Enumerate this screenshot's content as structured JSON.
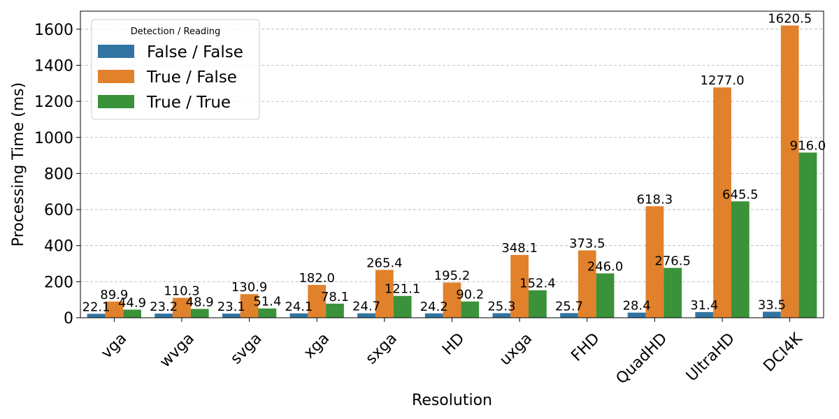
{
  "chart_data": {
    "type": "bar",
    "title": "",
    "xlabel": "Resolution",
    "ylabel": "Processing Time (ms)",
    "ylim": [
      0,
      1700
    ],
    "yticks": [
      0,
      200,
      400,
      600,
      800,
      1000,
      1200,
      1400,
      1600
    ],
    "grid": "y",
    "legend_position": "top-left",
    "legend_title": "Detection / Reading",
    "categories": [
      "vga",
      "wvga",
      "svga",
      "xga",
      "sxga",
      "HD",
      "uxga",
      "FHD",
      "QuadHD",
      "UltraHD",
      "DCI4K"
    ],
    "series": [
      {
        "name": "False / False",
        "color": "#3274a1",
        "values": [
          22.1,
          23.2,
          23.1,
          24.1,
          24.7,
          24.2,
          25.3,
          25.7,
          28.4,
          31.4,
          33.5
        ]
      },
      {
        "name": "True / False",
        "color": "#e1812c",
        "values": [
          89.9,
          110.3,
          130.9,
          182.0,
          265.4,
          195.2,
          348.1,
          373.5,
          618.3,
          1277.0,
          1620.5
        ]
      },
      {
        "name": "True / True",
        "color": "#3a923a",
        "values": [
          44.9,
          48.9,
          51.4,
          78.1,
          121.1,
          90.2,
          152.4,
          246.0,
          276.5,
          645.5,
          916.0
        ]
      }
    ]
  }
}
